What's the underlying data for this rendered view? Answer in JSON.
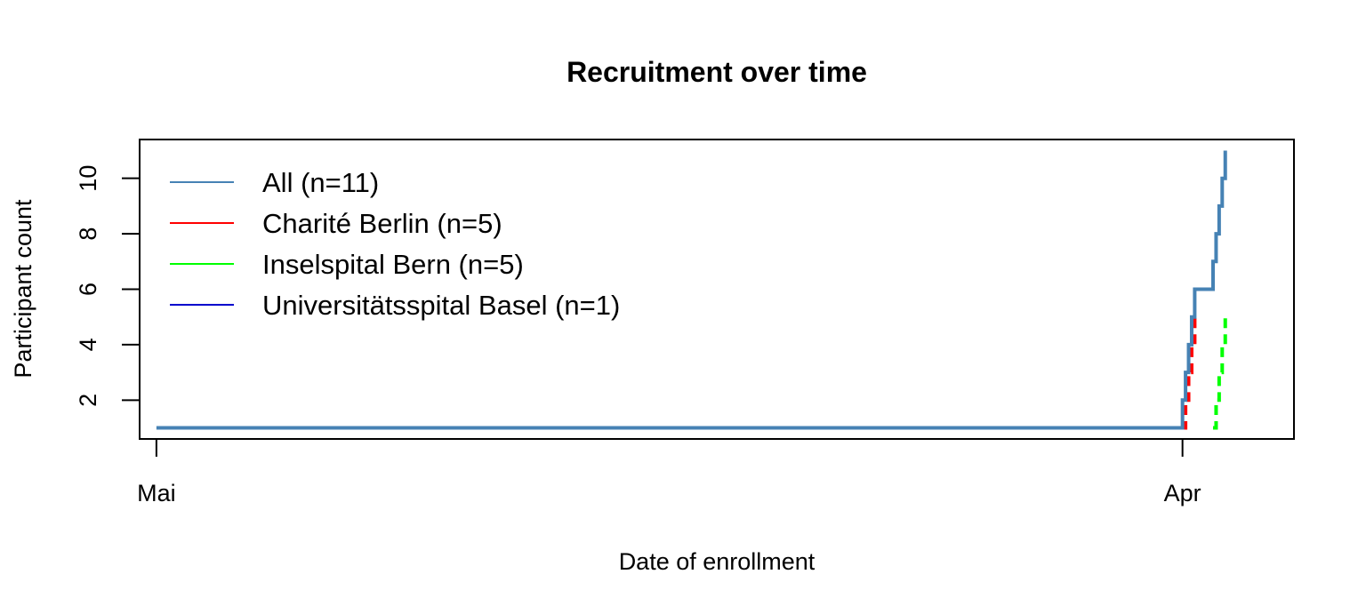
{
  "chart_data": {
    "type": "line",
    "title": "Recruitment over time",
    "xlabel": "Date of enrollment",
    "ylabel": "Participant count",
    "x_ticks": [
      {
        "label": "Mai",
        "value": 0
      },
      {
        "label": "Apr",
        "value": 336
      }
    ],
    "xlim": [
      -5.5,
      372.5
    ],
    "y_ticks": [
      2,
      4,
      6,
      8,
      10
    ],
    "ylim": [
      0.6,
      11.4
    ],
    "legend_position": "top-left",
    "step": true,
    "series": [
      {
        "name": "All (n=11)",
        "color": "#4682b4",
        "line_style": "solid",
        "points": [
          [
            0,
            1
          ],
          [
            336,
            1
          ],
          [
            336,
            2
          ],
          [
            337,
            2
          ],
          [
            337,
            3
          ],
          [
            338,
            3
          ],
          [
            338,
            4
          ],
          [
            339,
            4
          ],
          [
            339,
            5
          ],
          [
            340,
            5
          ],
          [
            340,
            6
          ],
          [
            346,
            6
          ],
          [
            346,
            7
          ],
          [
            347,
            7
          ],
          [
            347,
            8
          ],
          [
            348,
            8
          ],
          [
            348,
            9
          ],
          [
            349,
            9
          ],
          [
            349,
            10
          ],
          [
            350,
            10
          ],
          [
            350,
            11
          ]
        ]
      },
      {
        "name": "Charité Berlin  (n=5)",
        "color": "#ff0000",
        "line_style": "dashed",
        "points": [
          [
            336,
            1
          ],
          [
            337,
            1
          ],
          [
            337,
            2
          ],
          [
            338,
            2
          ],
          [
            338,
            3
          ],
          [
            339,
            3
          ],
          [
            339,
            4
          ],
          [
            340,
            4
          ],
          [
            340,
            5
          ]
        ]
      },
      {
        "name": "Inselspital Bern  (n=5)",
        "color": "#00ff00",
        "line_style": "dashed",
        "points": [
          [
            346,
            1
          ],
          [
            347,
            1
          ],
          [
            347,
            2
          ],
          [
            348,
            2
          ],
          [
            348,
            3
          ],
          [
            349,
            3
          ],
          [
            349,
            4
          ],
          [
            350,
            4
          ],
          [
            350,
            5
          ]
        ]
      },
      {
        "name": "Universitätsspital Basel  (n=1)",
        "color": "#0000cd",
        "line_style": "solid",
        "points": [
          [
            0,
            1
          ]
        ]
      }
    ]
  }
}
